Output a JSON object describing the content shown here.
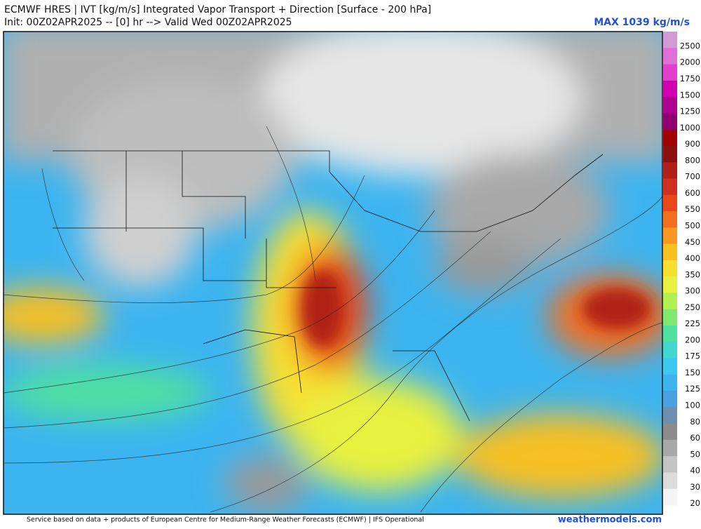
{
  "header": {
    "title": "ECMWF HRES | IVT [kg/m/s] Integrated Vapor Transport + Direction [Surface - 200 hPa]",
    "subtitle": "Init: 00Z02APR2025 -- [0] hr --> Valid Wed 00Z02APR2025",
    "max_label": "MAX 1039 kg/m/s"
  },
  "colorbar": [
    {
      "label": "2500",
      "color": "#d49ad6"
    },
    {
      "label": "2000",
      "color": "#e070d8"
    },
    {
      "label": "1750",
      "color": "#e040cc"
    },
    {
      "label": "1500",
      "color": "#d000b0"
    },
    {
      "label": "1250",
      "color": "#b00090"
    },
    {
      "label": "1000",
      "color": "#900070"
    },
    {
      "label": "900",
      "color": "#a00000"
    },
    {
      "label": "800",
      "color": "#8c1010"
    },
    {
      "label": "700",
      "color": "#b02018"
    },
    {
      "label": "600",
      "color": "#d03020"
    },
    {
      "label": "550",
      "color": "#e84818"
    },
    {
      "label": "500",
      "color": "#f07020"
    },
    {
      "label": "450",
      "color": "#f89820"
    },
    {
      "label": "400",
      "color": "#f8c020"
    },
    {
      "label": "350",
      "color": "#f8e030"
    },
    {
      "label": "300",
      "color": "#e8f040"
    },
    {
      "label": "250",
      "color": "#b0f050"
    },
    {
      "label": "225",
      "color": "#80e870"
    },
    {
      "label": "200",
      "color": "#50e0a0"
    },
    {
      "label": "175",
      "color": "#40d8d0"
    },
    {
      "label": "150",
      "color": "#3cc8f0"
    },
    {
      "label": "125",
      "color": "#3cb4f0"
    },
    {
      "label": "100",
      "color": "#4aa0e0"
    },
    {
      "label": "80",
      "color": "#6e8fae"
    },
    {
      "label": "60",
      "color": "#8c8c8c"
    },
    {
      "label": "50",
      "color": "#a8a8a8"
    },
    {
      "label": "40",
      "color": "#c4c4c4"
    },
    {
      "label": "30",
      "color": "#dcdcdc"
    },
    {
      "label": "20",
      "color": "#f4f4f4"
    }
  ],
  "footer": {
    "credit": "Service based on data + products of European Centre for Medium-Range Weather Forecasts (ECMWF) | IFS Operational",
    "site": "weathermodels.com"
  }
}
